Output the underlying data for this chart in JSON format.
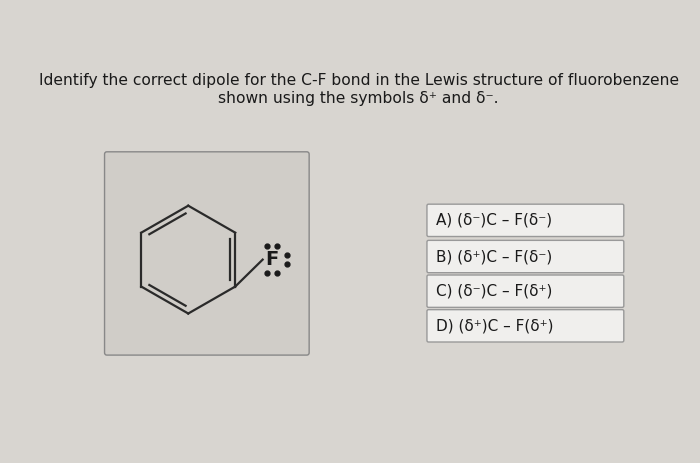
{
  "title_line1": "Identify the correct dipole for the C-F bond in the Lewis structure of fluorobenzene",
  "title_line2": "shown using the symbols δ⁺ and δ⁻.",
  "bg_color": "#d8d5d0",
  "box_color": "#d0cdc8",
  "answer_box_color": "#f0efed",
  "answer_border_color": "#999999",
  "choices": [
    "A) (δ⁻)C – F(δ⁻)",
    "B) (δ⁺)C – F(δ⁻)",
    "C) (δ⁻)C – F(δ⁺)",
    "D) (δ⁺)C – F(δ⁺)"
  ],
  "line_color": "#2a2a2a",
  "text_color": "#1a1a1a",
  "title_fontsize": 11.2,
  "choice_fontsize": 11
}
